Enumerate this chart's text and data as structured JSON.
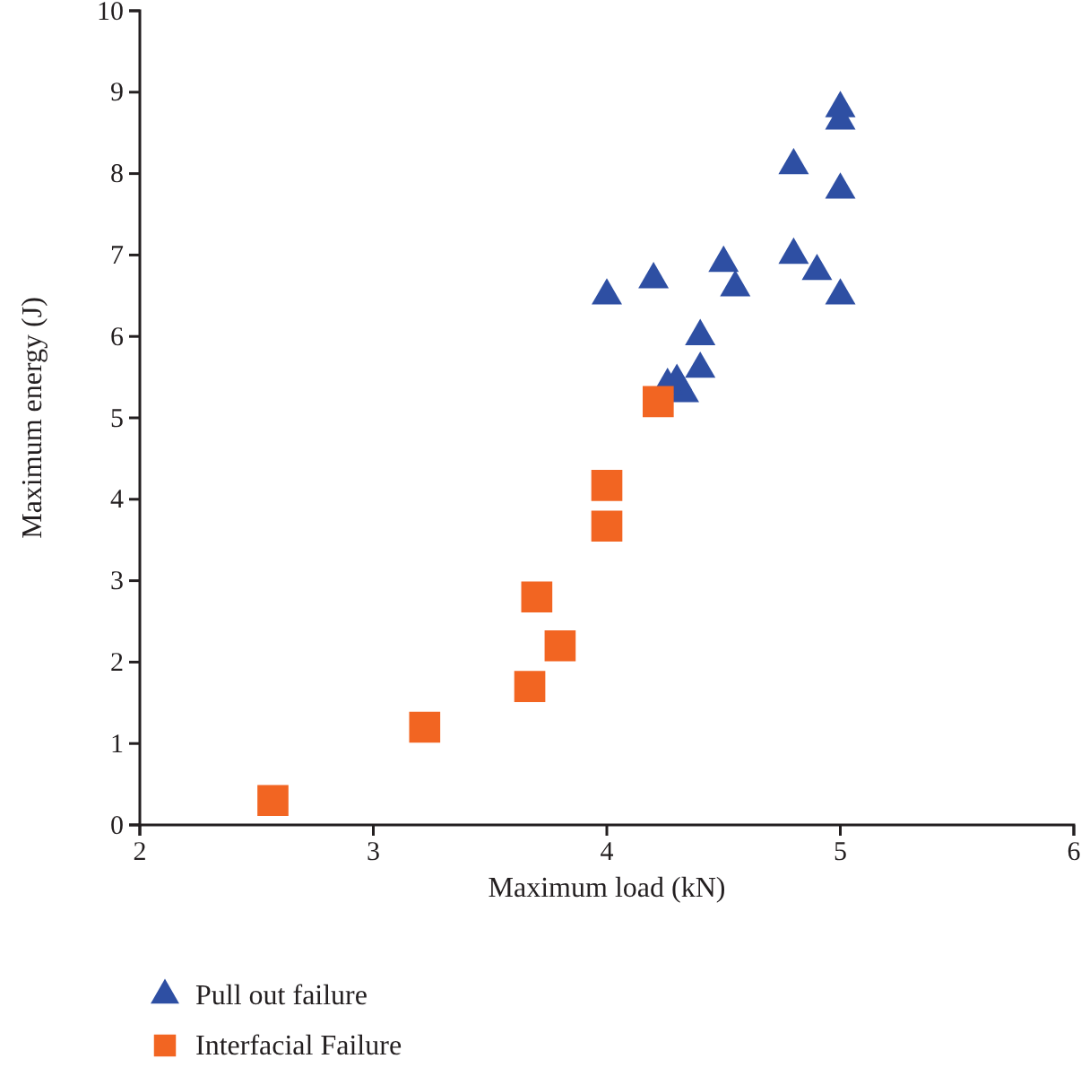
{
  "chart_data": {
    "type": "scatter",
    "xlabel": "Maximum load (kN)",
    "ylabel": "Maximum energy (J)",
    "xlim": [
      2,
      6
    ],
    "xticks": [
      2,
      3,
      4,
      5,
      6
    ],
    "ylim": [
      0,
      10
    ],
    "yticks": [
      0,
      1,
      2,
      3,
      4,
      5,
      6,
      7,
      8,
      9,
      10
    ],
    "grid": false,
    "legend": "bottom left",
    "series": [
      {
        "name": "Pull out failure",
        "color": "#2e4fa3",
        "marker": "triangle",
        "x": [
          4.0,
          4.2,
          4.5,
          4.55,
          4.8,
          5.0,
          5.0,
          5.0,
          4.8,
          4.9,
          5.0,
          4.4,
          4.4,
          4.33,
          4.3,
          4.26
        ],
        "values": [
          6.5,
          6.7,
          6.9,
          6.6,
          8.1,
          8.65,
          8.8,
          7.8,
          7.0,
          6.8,
          6.5,
          6.0,
          5.6,
          5.3,
          5.45,
          5.4
        ]
      },
      {
        "name": "Interfacial Failure",
        "color": "#f26522",
        "marker": "square",
        "x": [
          2.57,
          3.22,
          3.67,
          3.8,
          3.7,
          4.0,
          4.0,
          4.22
        ],
        "values": [
          0.3,
          1.2,
          1.7,
          2.2,
          2.8,
          3.67,
          4.17,
          5.2
        ]
      }
    ]
  }
}
